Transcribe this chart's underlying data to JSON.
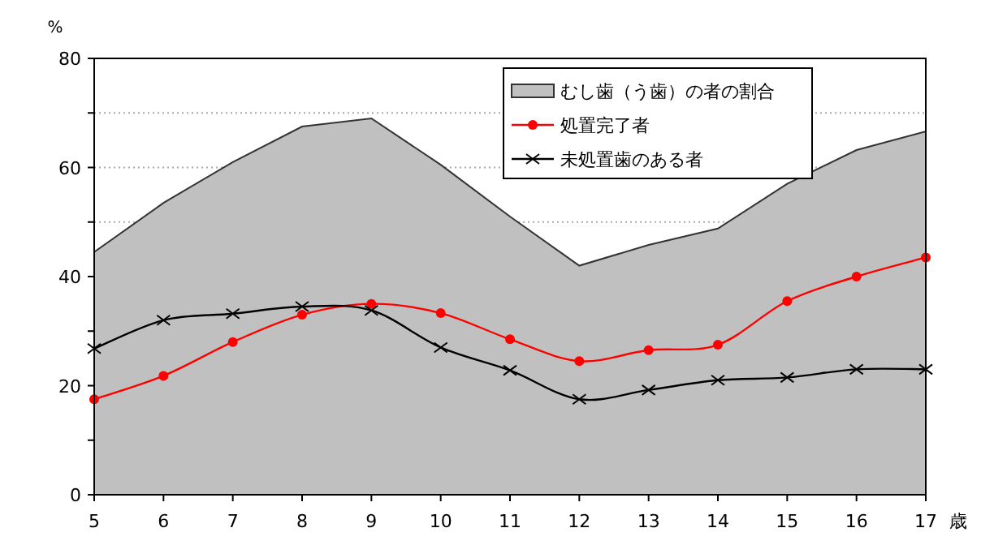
{
  "chart_data": {
    "type": "line",
    "ylabel": "%",
    "xlabel": "歳",
    "x": [
      5,
      6,
      7,
      8,
      9,
      10,
      11,
      12,
      13,
      14,
      15,
      16,
      17
    ],
    "xlim": [
      5,
      17
    ],
    "xticks": [
      5,
      6,
      7,
      8,
      9,
      10,
      11,
      12,
      13,
      14,
      15,
      16,
      17
    ],
    "ylim": [
      0,
      80
    ],
    "yticks": [
      0,
      {
        "value": 10,
        "label": null
      },
      20,
      {
        "value": 30,
        "label": null
      },
      40,
      {
        "value": 50,
        "label": null
      },
      60,
      {
        "value": 70,
        "label": null
      },
      80
    ],
    "grid": "y",
    "legend": "top right",
    "series": [
      {
        "name": "むし歯（う歯）の者の割合",
        "type": "area",
        "color": "#c0c0c0",
        "values": [
          44.5,
          53.5,
          61,
          67.5,
          69,
          60.5,
          51,
          42,
          45.8,
          48.8,
          57,
          63.2,
          66.6
        ]
      },
      {
        "name": "処置完了者",
        "color": "#ff0000",
        "marker": "circle",
        "values": [
          17.5,
          21.8,
          28,
          33,
          35,
          33.3,
          28.5,
          24.5,
          26.5,
          27.5,
          35.5,
          40,
          43.5
        ]
      },
      {
        "name": "未処置歯のある者",
        "color": "#000000",
        "marker": "cross",
        "values": [
          26.8,
          32,
          33.2,
          34.5,
          33.8,
          27,
          22.8,
          17.5,
          19.2,
          21,
          21.5,
          23,
          23
        ]
      }
    ]
  }
}
